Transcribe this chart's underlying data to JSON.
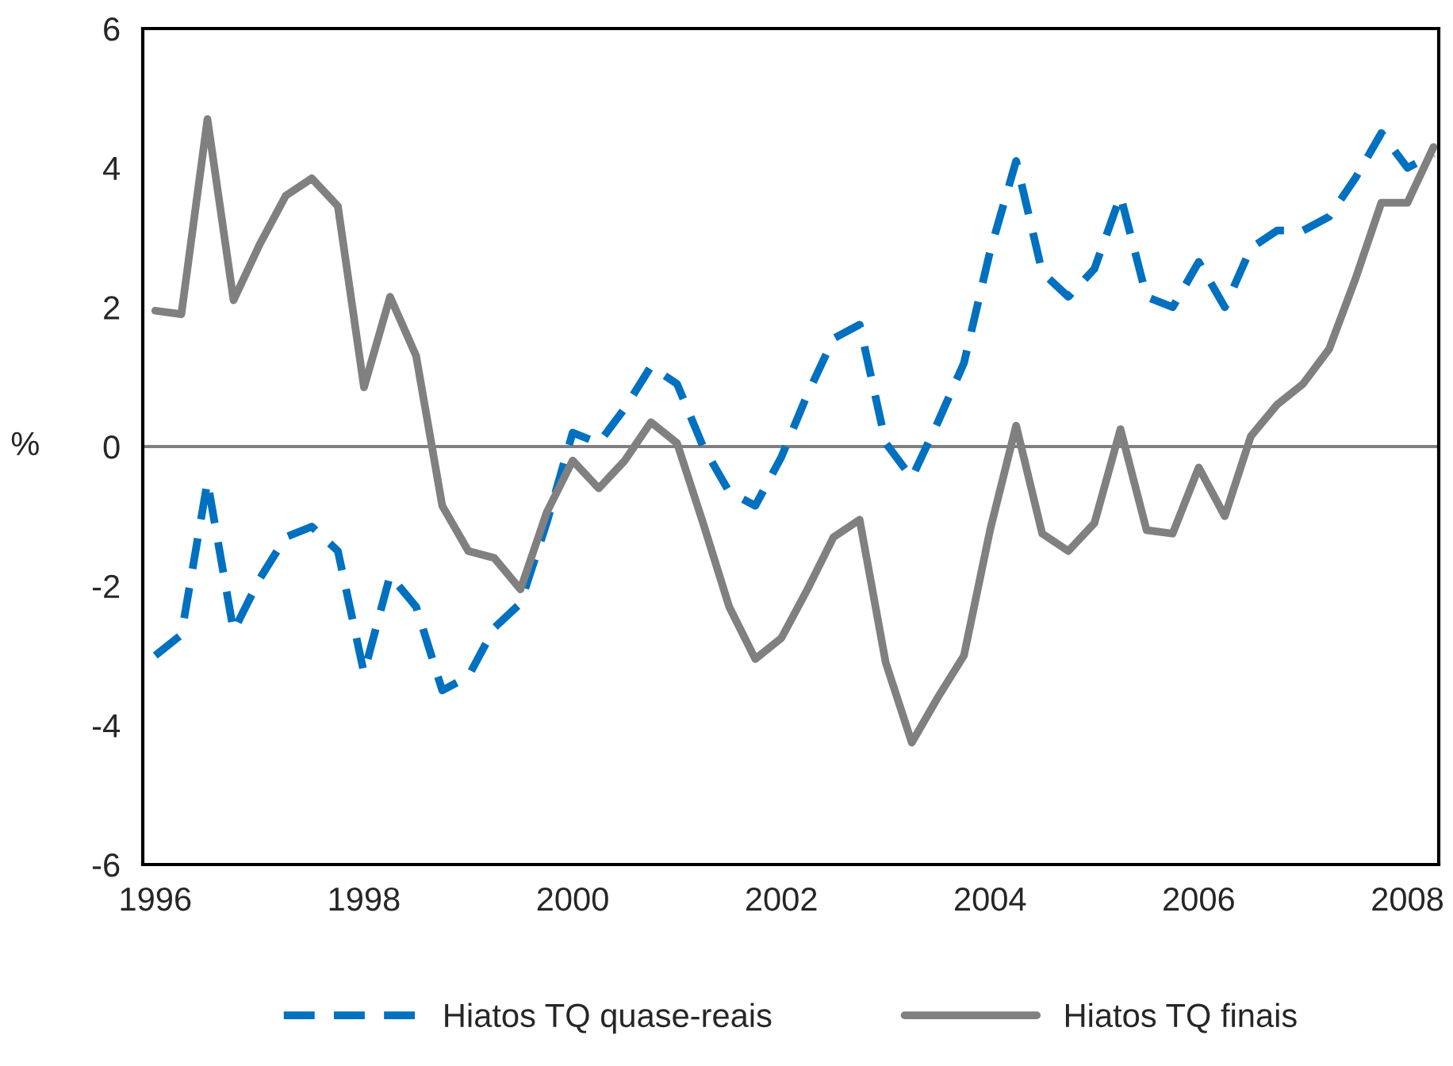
{
  "chart_data": {
    "type": "line",
    "ylabel": "%",
    "xlim": [
      1995.88,
      2008.3
    ],
    "xticks": [
      1996,
      1998,
      2000,
      2002,
      2004,
      2006,
      2008
    ],
    "ylim": [
      -6,
      6
    ],
    "yticks": [
      -6,
      -4,
      -2,
      0,
      2,
      4,
      6
    ],
    "grid": false,
    "legend": "bottom",
    "x": [
      1996,
      1996.25,
      1996.5,
      1996.75,
      1997,
      1997.25,
      1997.5,
      1997.75,
      1998,
      1998.25,
      1998.5,
      1998.75,
      1999,
      1999.25,
      1999.5,
      1999.75,
      2000,
      2000.25,
      2000.5,
      2000.75,
      2001,
      2001.25,
      2001.5,
      2001.75,
      2002,
      2002.25,
      2002.5,
      2002.75,
      2003,
      2003.25,
      2003.5,
      2003.75,
      2004,
      2004.25,
      2004.5,
      2004.75,
      2005,
      2005.25,
      2005.5,
      2005.75,
      2006,
      2006.25,
      2006.5,
      2006.75,
      2007,
      2007.25,
      2007.5,
      2007.75,
      2008,
      2008.25
    ],
    "series": [
      {
        "name": "Hiatos TQ quase-reais",
        "color": "#0070c0",
        "line_style": "dashed",
        "values": [
          -3.0,
          -2.7,
          -0.5,
          -2.65,
          -1.9,
          -1.3,
          -1.15,
          -1.5,
          -3.25,
          -1.85,
          -2.3,
          -3.5,
          -3.3,
          -2.6,
          -2.25,
          -1.1,
          0.2,
          0.05,
          0.55,
          1.15,
          0.9,
          0.0,
          -0.65,
          -0.85,
          -0.15,
          0.75,
          1.55,
          1.75,
          0.05,
          -0.45,
          0.35,
          1.2,
          2.8,
          4.1,
          2.5,
          2.15,
          2.55,
          3.6,
          2.15,
          2.0,
          2.65,
          2.0,
          2.85,
          3.1,
          3.1,
          3.3,
          3.85,
          4.5,
          4.0,
          4.2
        ]
      },
      {
        "name": "Hiatos TQ finais",
        "color": "#808080",
        "line_style": "solid",
        "values": [
          1.95,
          1.9,
          4.7,
          2.1,
          2.9,
          3.6,
          3.85,
          3.45,
          0.85,
          2.15,
          1.3,
          -0.85,
          -1.5,
          -1.6,
          -2.05,
          -0.95,
          -0.2,
          -0.6,
          -0.2,
          0.35,
          0.05,
          -1.1,
          -2.3,
          -3.05,
          -2.75,
          -2.05,
          -1.3,
          -1.05,
          -3.1,
          -4.25,
          -3.6,
          -3.0,
          -1.2,
          0.3,
          -1.25,
          -1.5,
          -1.1,
          0.25,
          -1.2,
          -1.25,
          -0.3,
          -1.0,
          0.15,
          0.6,
          0.9,
          1.4,
          2.4,
          3.5,
          3.5,
          4.3
        ]
      }
    ],
    "ref_lines": [
      {
        "axis": "y",
        "value": 0,
        "color": "#808080",
        "line_style": "solid"
      }
    ]
  }
}
